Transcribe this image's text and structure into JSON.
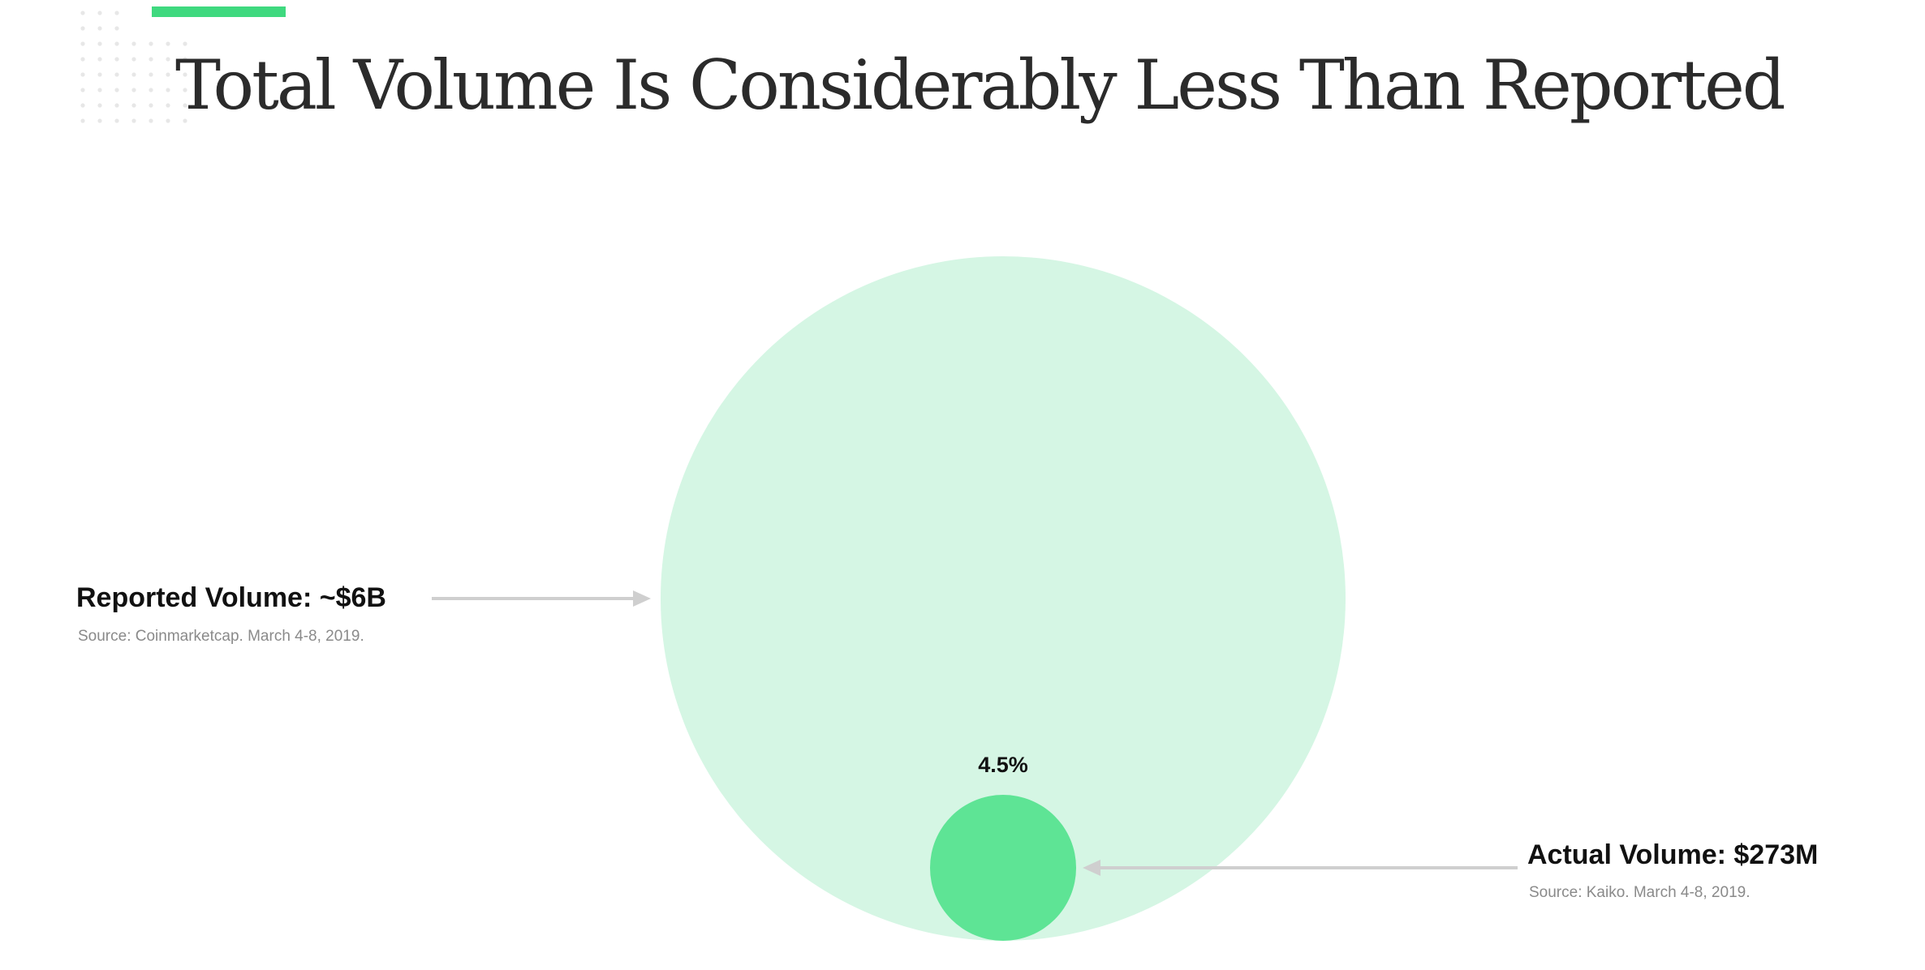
{
  "title": "Total Volume Is Considerably Less Than Reported",
  "colors": {
    "accent": "#3fd97f",
    "reported_circle": "#d5f6e4",
    "actual_circle": "#5ee495",
    "arrow": "#cfcfcf",
    "dots": "#e7e7e7"
  },
  "chart_data": {
    "type": "bubble",
    "title": "Total Volume Is Considerably Less Than Reported",
    "series": [
      {
        "name": "Reported Volume",
        "label": "Reported Volume: ~$6B",
        "value": 6000000000,
        "source": "Source: Coinmarketcap. March 4-8, 2019."
      },
      {
        "name": "Actual Volume",
        "label": "Actual Volume: $273M",
        "value": 273000000,
        "source": "Source: Kaiko. March 4-8, 2019."
      }
    ],
    "annotations": [
      {
        "text": "4.5%",
        "target": "Actual Volume"
      }
    ]
  }
}
